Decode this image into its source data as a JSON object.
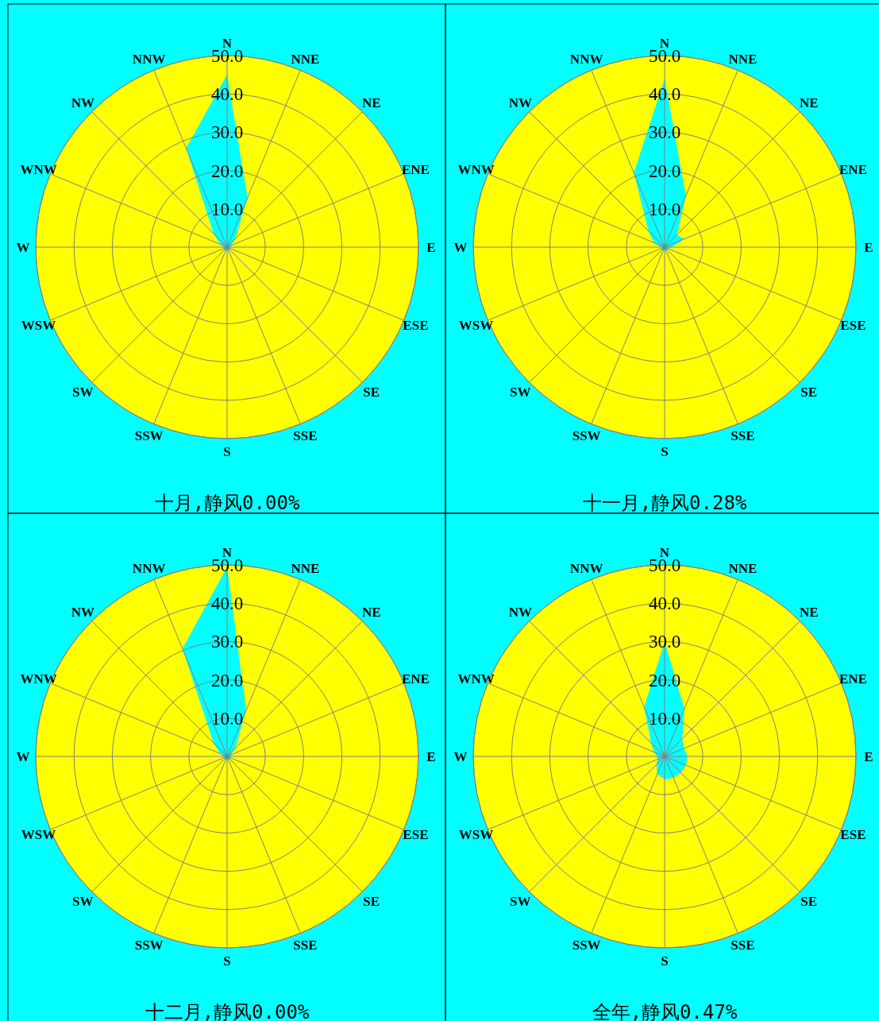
{
  "chart_data": [
    {
      "type": "radar",
      "title": "十月,静风0.00%",
      "categories": [
        "N",
        "NNE",
        "NE",
        "ENE",
        "E",
        "ESE",
        "SE",
        "SSE",
        "S",
        "SSW",
        "SW",
        "WSW",
        "W",
        "WNW",
        "NW",
        "NNW"
      ],
      "ylim": [
        0,
        50
      ],
      "yticks": [
        {
          "value": 10,
          "label": "10.0"
        },
        {
          "value": 20,
          "label": "20.0"
        },
        {
          "value": 30,
          "label": "30.0"
        },
        {
          "value": 40,
          "label": "40.0"
        },
        {
          "value": 50,
          "label": "50.0"
        }
      ],
      "grid": true,
      "series": [
        {
          "color": "#00ffff",
          "values": [
            45,
            14,
            3,
            1,
            1,
            1,
            1,
            1,
            1,
            1,
            1,
            1,
            1,
            2,
            5,
            28
          ]
        }
      ]
    },
    {
      "type": "radar",
      "title": "十一月,静风0.28%",
      "categories": [
        "N",
        "NNE",
        "NE",
        "ENE",
        "E",
        "ESE",
        "SE",
        "SSE",
        "S",
        "SSW",
        "SW",
        "WSW",
        "W",
        "WNW",
        "NW",
        "NNW"
      ],
      "ylim": [
        0,
        50
      ],
      "yticks": [
        {
          "value": 10,
          "label": "10.0"
        },
        {
          "value": 20,
          "label": "20.0"
        },
        {
          "value": 30,
          "label": "30.0"
        },
        {
          "value": 40,
          "label": "40.0"
        },
        {
          "value": 50,
          "label": "50.0"
        }
      ],
      "grid": true,
      "series": [
        {
          "color": "#00ffff",
          "values": [
            44,
            14.5,
            4.5,
            5.5,
            2,
            1,
            1,
            1,
            1,
            1,
            1,
            1,
            1,
            3,
            6,
            21
          ]
        }
      ]
    },
    {
      "type": "radar",
      "title": "十二月,静风0.00%",
      "categories": [
        "N",
        "NNE",
        "NE",
        "ENE",
        "E",
        "ESE",
        "SE",
        "SSE",
        "S",
        "SSW",
        "SW",
        "WSW",
        "W",
        "WNW",
        "NW",
        "NNW"
      ],
      "ylim": [
        0,
        50
      ],
      "yticks": [
        {
          "value": 10,
          "label": "10.0"
        },
        {
          "value": 20,
          "label": "20.0"
        },
        {
          "value": 30,
          "label": "30.0"
        },
        {
          "value": 40,
          "label": "40.0"
        },
        {
          "value": 50,
          "label": "50.0"
        }
      ],
      "grid": true,
      "series": [
        {
          "color": "#00ffff",
          "values": [
            49.5,
            13,
            3,
            1,
            1,
            1,
            1,
            1,
            1,
            1,
            1,
            1,
            1,
            2,
            5,
            30.5
          ]
        }
      ]
    },
    {
      "type": "radar",
      "title": "全年,静风0.47%",
      "categories": [
        "N",
        "NNE",
        "NE",
        "ENE",
        "E",
        "ESE",
        "SE",
        "SSE",
        "S",
        "SSW",
        "SW",
        "WSW",
        "W",
        "WNW",
        "NW",
        "NNW"
      ],
      "ylim": [
        0,
        50
      ],
      "yticks": [
        {
          "value": 10,
          "label": "10.0"
        },
        {
          "value": 20,
          "label": "20.0"
        },
        {
          "value": 30,
          "label": "30.0"
        },
        {
          "value": 40,
          "label": "40.0"
        },
        {
          "value": 50,
          "label": "50.0"
        }
      ],
      "grid": true,
      "series": [
        {
          "color": "#00ffff",
          "values": [
            30,
            13.5,
            6.5,
            5.5,
            6,
            6,
            6,
            6,
            6,
            5,
            3,
            2,
            2,
            3,
            5,
            14
          ]
        }
      ]
    }
  ]
}
